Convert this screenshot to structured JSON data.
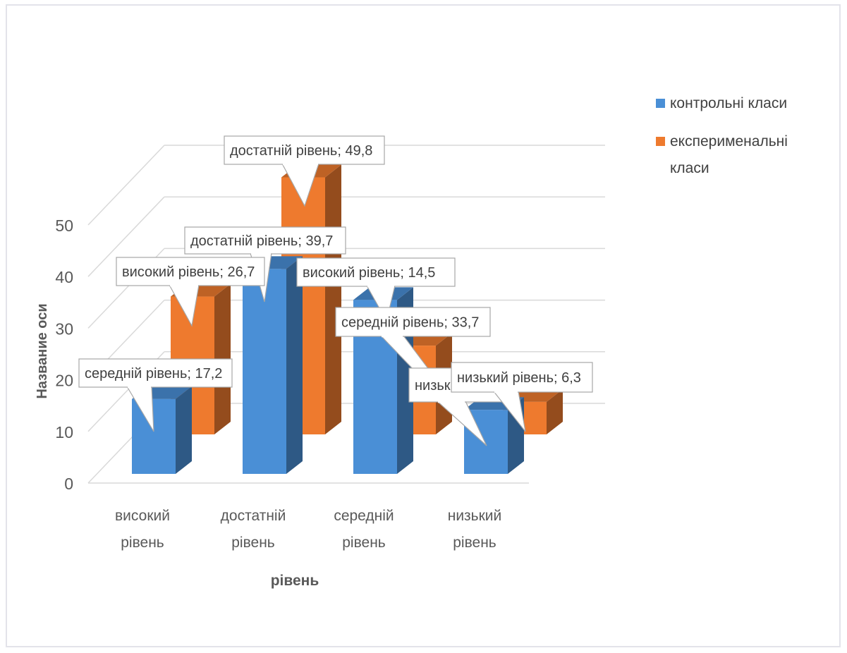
{
  "chart_data": {
    "type": "bar",
    "categories": [
      "високий рівень",
      "достатній рівень",
      "середній рівень",
      "низький рівень"
    ],
    "category_lines": [
      [
        "високий",
        "рівень"
      ],
      [
        "достатній",
        "рівень"
      ],
      [
        "середній",
        "рівень"
      ],
      [
        "низький",
        "рівень"
      ]
    ],
    "series": [
      {
        "name": "контрольні класи",
        "values": [
          14.5,
          39.7,
          33.7,
          12.4
        ],
        "color": "#4a8fd6"
      },
      {
        "name": "експерименальні класи",
        "values": [
          26.7,
          49.8,
          17.2,
          6.3
        ],
        "color": "#ee7a2e"
      }
    ],
    "ylim": [
      0,
      50
    ],
    "yticks": [
      0,
      10,
      20,
      30,
      40,
      50
    ],
    "xlabel": "рівень",
    "ylabel": "Название оси",
    "legend_position": "right",
    "gridlines": true,
    "data_labels": [
      {
        "series": 0,
        "category": 0,
        "text": "високий рівень; 14,5"
      },
      {
        "series": 1,
        "category": 0,
        "text": "високий рівень; 26,7"
      },
      {
        "series": 0,
        "category": 1,
        "text": "достатній рівень; 39,7"
      },
      {
        "series": 1,
        "category": 1,
        "text": "достатній рівень; 49,8"
      },
      {
        "series": 0,
        "category": 2,
        "text": "середній рівень; 33,7"
      },
      {
        "series": 1,
        "category": 2,
        "text": "середній рівень; 17,2"
      },
      {
        "series": 0,
        "category": 3,
        "text": "низьк"
      },
      {
        "series": 1,
        "category": 3,
        "text": "низький рівень; 6,3"
      }
    ]
  },
  "legend": {
    "items": [
      {
        "label": "контрольні класи",
        "color": "#4a8fd6"
      },
      {
        "label": "експерименальні класи",
        "color": "#ee7a2e"
      }
    ]
  }
}
